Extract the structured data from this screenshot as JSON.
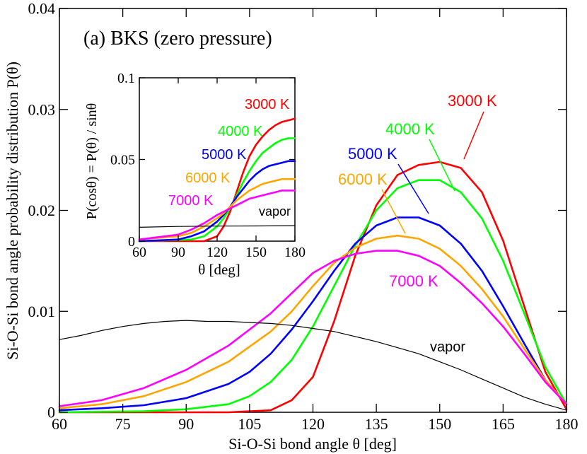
{
  "chart_data": [
    {
      "type": "line",
      "title": "(a) BKS (zero pressure)",
      "xlabel": "Si-O-Si bond angle  θ  [deg]",
      "ylabel": "Si-O-Si bond angle probability distribution  P(θ)",
      "xlim": [
        60,
        180
      ],
      "ylim": [
        0,
        0.04
      ],
      "xticks": [
        60,
        75,
        90,
        105,
        120,
        135,
        150,
        165,
        180
      ],
      "xtick_labels": [
        "60",
        "75",
        "90",
        "105",
        "120",
        "135",
        "150",
        "165",
        "180"
      ],
      "yticks": [
        0,
        0.01,
        0.02,
        0.03,
        0.04
      ],
      "ytick_labels": [
        "0",
        "0.01",
        "0.02",
        "0.03",
        "0.04"
      ],
      "series": [
        {
          "name": "3000 K",
          "label": "3000 K",
          "color": "#ff0000",
          "x": [
            60,
            100,
            110,
            115,
            120,
            125,
            130,
            135,
            140,
            145,
            150,
            155,
            160,
            165,
            170,
            175,
            180
          ],
          "y": [
            0,
            0,
            0.0002,
            0.0012,
            0.0035,
            0.009,
            0.0155,
            0.0205,
            0.0235,
            0.0245,
            0.0248,
            0.0242,
            0.0218,
            0.017,
            0.0105,
            0.004,
            0.0003
          ]
        },
        {
          "name": "4000 K",
          "label": "4000 K",
          "color": "#00ff00",
          "x": [
            60,
            80,
            90,
            100,
            105,
            110,
            115,
            120,
            125,
            130,
            135,
            140,
            145,
            150,
            155,
            160,
            165,
            170,
            175,
            180
          ],
          "y": [
            0,
            0.0001,
            0.0003,
            0.0008,
            0.0016,
            0.003,
            0.0052,
            0.0085,
            0.0125,
            0.0165,
            0.02,
            0.0222,
            0.023,
            0.023,
            0.0218,
            0.0192,
            0.015,
            0.0098,
            0.0045,
            0.0008
          ]
        },
        {
          "name": "5000 K",
          "label": "5000 K",
          "color": "#0000ff",
          "x": [
            60,
            70,
            80,
            90,
            100,
            105,
            110,
            115,
            120,
            125,
            130,
            135,
            140,
            145,
            150,
            155,
            160,
            165,
            170,
            175,
            180
          ],
          "y": [
            0.0002,
            0.0004,
            0.0007,
            0.0014,
            0.0028,
            0.004,
            0.0058,
            0.0082,
            0.011,
            0.014,
            0.0167,
            0.0185,
            0.0193,
            0.0193,
            0.0185,
            0.0167,
            0.014,
            0.0105,
            0.0068,
            0.0032,
            0.0008
          ]
        },
        {
          "name": "6000 K",
          "label": "6000 K",
          "color": "#ffa500",
          "x": [
            60,
            70,
            80,
            90,
            100,
            110,
            115,
            120,
            125,
            130,
            135,
            140,
            145,
            150,
            155,
            160,
            165,
            170,
            175,
            180
          ],
          "y": [
            0.0004,
            0.0008,
            0.0016,
            0.003,
            0.005,
            0.008,
            0.01,
            0.0125,
            0.0148,
            0.0163,
            0.0172,
            0.0175,
            0.0172,
            0.0162,
            0.0145,
            0.0122,
            0.0095,
            0.0063,
            0.0032,
            0.0008
          ]
        },
        {
          "name": "7000 K",
          "label": "7000 K",
          "color": "#ff00ff",
          "x": [
            60,
            70,
            80,
            90,
            100,
            110,
            115,
            120,
            125,
            130,
            135,
            140,
            145,
            150,
            155,
            160,
            165,
            170,
            175,
            180
          ],
          "y": [
            0.0006,
            0.0012,
            0.0024,
            0.0042,
            0.0066,
            0.0098,
            0.0118,
            0.0138,
            0.015,
            0.0157,
            0.016,
            0.016,
            0.0155,
            0.0145,
            0.0128,
            0.0108,
            0.0085,
            0.0058,
            0.003,
            0.0008
          ]
        },
        {
          "name": "vapor",
          "label": "vapor",
          "color": "#000000",
          "x": [
            60,
            65,
            70,
            75,
            80,
            85,
            90,
            95,
            100,
            105,
            110,
            115,
            120,
            125,
            130,
            135,
            140,
            145,
            150,
            155,
            160,
            165,
            170,
            175,
            180
          ],
          "y": [
            0.0072,
            0.0076,
            0.0081,
            0.0085,
            0.0088,
            0.009,
            0.0091,
            0.009,
            0.009,
            0.0089,
            0.0088,
            0.0086,
            0.0083,
            0.008,
            0.0075,
            0.007,
            0.0064,
            0.0058,
            0.005,
            0.0042,
            0.0033,
            0.0024,
            0.0015,
            0.0008,
            0.0002
          ]
        }
      ]
    },
    {
      "type": "line",
      "title": "",
      "xlabel": "θ  [deg]",
      "ylabel": "P(cosθ) = P(θ) / sinθ",
      "xlim": [
        60,
        180
      ],
      "ylim": [
        0,
        0.1
      ],
      "xticks": [
        60,
        90,
        120,
        150,
        180
      ],
      "xtick_labels": [
        "60",
        "90",
        "120",
        "150",
        "180"
      ],
      "yticks": [
        0,
        0.05,
        0.1
      ],
      "ytick_labels": [
        "0",
        "0.05",
        "0.1"
      ],
      "series": [
        {
          "name": "3000 K",
          "label": "3000 K",
          "color": "#ff0000",
          "x": [
            60,
            110,
            120,
            125,
            130,
            135,
            140,
            145,
            150,
            155,
            160,
            165,
            170,
            175,
            180
          ],
          "y": [
            0,
            0,
            0.003,
            0.009,
            0.018,
            0.03,
            0.042,
            0.052,
            0.059,
            0.064,
            0.068,
            0.071,
            0.073,
            0.074,
            0.075
          ]
        },
        {
          "name": "4000 K",
          "label": "4000 K",
          "color": "#00ff00",
          "x": [
            60,
            100,
            110,
            120,
            125,
            130,
            135,
            140,
            145,
            150,
            155,
            160,
            165,
            170,
            175,
            180
          ],
          "y": [
            0,
            0.001,
            0.003,
            0.009,
            0.014,
            0.02,
            0.028,
            0.036,
            0.043,
            0.049,
            0.054,
            0.057,
            0.06,
            0.062,
            0.063,
            0.063
          ]
        },
        {
          "name": "5000 K",
          "label": "5000 K",
          "color": "#0000ff",
          "x": [
            60,
            90,
            100,
            110,
            120,
            125,
            130,
            135,
            140,
            145,
            150,
            155,
            160,
            165,
            170,
            175,
            180
          ],
          "y": [
            0,
            0.001,
            0.003,
            0.006,
            0.012,
            0.016,
            0.021,
            0.027,
            0.032,
            0.037,
            0.041,
            0.044,
            0.046,
            0.047,
            0.048,
            0.049,
            0.049
          ]
        },
        {
          "name": "6000 K",
          "label": "6000 K",
          "color": "#ffa500",
          "x": [
            60,
            90,
            100,
            110,
            120,
            125,
            130,
            135,
            140,
            145,
            150,
            155,
            160,
            165,
            170,
            175,
            180
          ],
          "y": [
            0.001,
            0.003,
            0.005,
            0.009,
            0.014,
            0.017,
            0.021,
            0.025,
            0.028,
            0.031,
            0.033,
            0.035,
            0.036,
            0.037,
            0.038,
            0.038,
            0.038
          ]
        },
        {
          "name": "7000 K",
          "label": "7000 K",
          "color": "#ff00ff",
          "x": [
            60,
            90,
            100,
            110,
            120,
            125,
            130,
            135,
            140,
            145,
            150,
            155,
            160,
            165,
            170,
            175,
            180
          ],
          "y": [
            0.001,
            0.004,
            0.007,
            0.011,
            0.016,
            0.018,
            0.02,
            0.022,
            0.024,
            0.026,
            0.027,
            0.028,
            0.029,
            0.03,
            0.031,
            0.031,
            0.031
          ]
        },
        {
          "name": "vapor",
          "label": "vapor",
          "color": "#000000",
          "x": [
            60,
            90,
            120,
            150,
            180
          ],
          "y": [
            0.0085,
            0.009,
            0.0092,
            0.0093,
            0.0095
          ]
        }
      ]
    }
  ]
}
